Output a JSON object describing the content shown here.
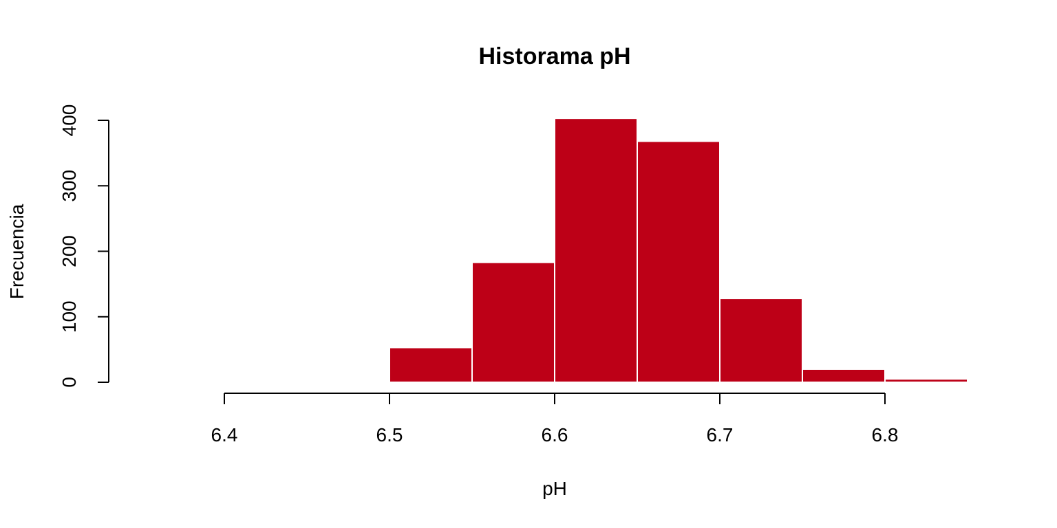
{
  "chart_data": {
    "type": "bar",
    "title": "Historama pH",
    "xlabel": "pH",
    "ylabel": "Frecuencia",
    "bin_edges": [
      6.45,
      6.5,
      6.55,
      6.6,
      6.65,
      6.7,
      6.75,
      6.8,
      6.85
    ],
    "values": [
      1,
      53,
      183,
      403,
      368,
      128,
      20,
      5
    ],
    "x_ticks": [
      "6.4",
      "6.5",
      "6.6",
      "6.7",
      "6.8"
    ],
    "y_ticks": [
      "0",
      "100",
      "200",
      "300",
      "400"
    ],
    "xlim": [
      6.4,
      6.8
    ],
    "ylim": [
      0,
      400
    ],
    "grid": false,
    "bar_color": "#BD0017",
    "bar_border_color": "#FFFFFF"
  }
}
